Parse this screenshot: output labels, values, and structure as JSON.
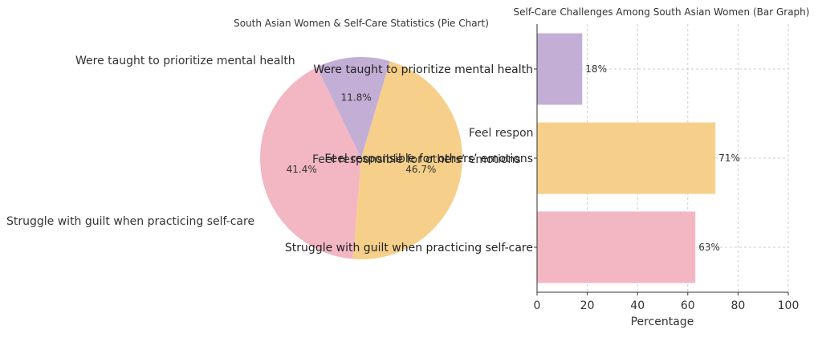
{
  "charts": [
    {
      "type": "pie",
      "title": "South Asian Women & Self-Care Statistics (Pie Chart)",
      "slices": [
        {
          "label": "Were taught to prioritize mental health",
          "value": 11.8,
          "display": "11.8%",
          "color": "#c3aed6"
        },
        {
          "label": "Feel responsible for others’ emotions",
          "value": 46.7,
          "display": "46.7%",
          "color": "#f6d08a"
        },
        {
          "label": "Struggle with guilt when practicing self-care",
          "value": 41.4,
          "display": "41.4%",
          "color": "#f3b6c3"
        }
      ]
    },
    {
      "type": "bar",
      "orientation": "horizontal",
      "title": "Self-Care Challenges Among South Asian Women (Bar Graph)",
      "xlabel": "Percentage",
      "xlim": [
        0,
        100
      ],
      "xticks": [
        0,
        20,
        40,
        60,
        80,
        100
      ],
      "grid": true,
      "categories": [
        "Were taught to prioritize mental health",
        "Feel responsible for others’ emotions",
        "Struggle with guilt when practicing self-care"
      ],
      "values": [
        18,
        71,
        63
      ],
      "value_labels": [
        "18%",
        "71%",
        "63%"
      ],
      "colors": [
        "#c3aed6",
        "#f6d08a",
        "#f3b6c3"
      ],
      "stray_label": "Feel respon"
    }
  ]
}
